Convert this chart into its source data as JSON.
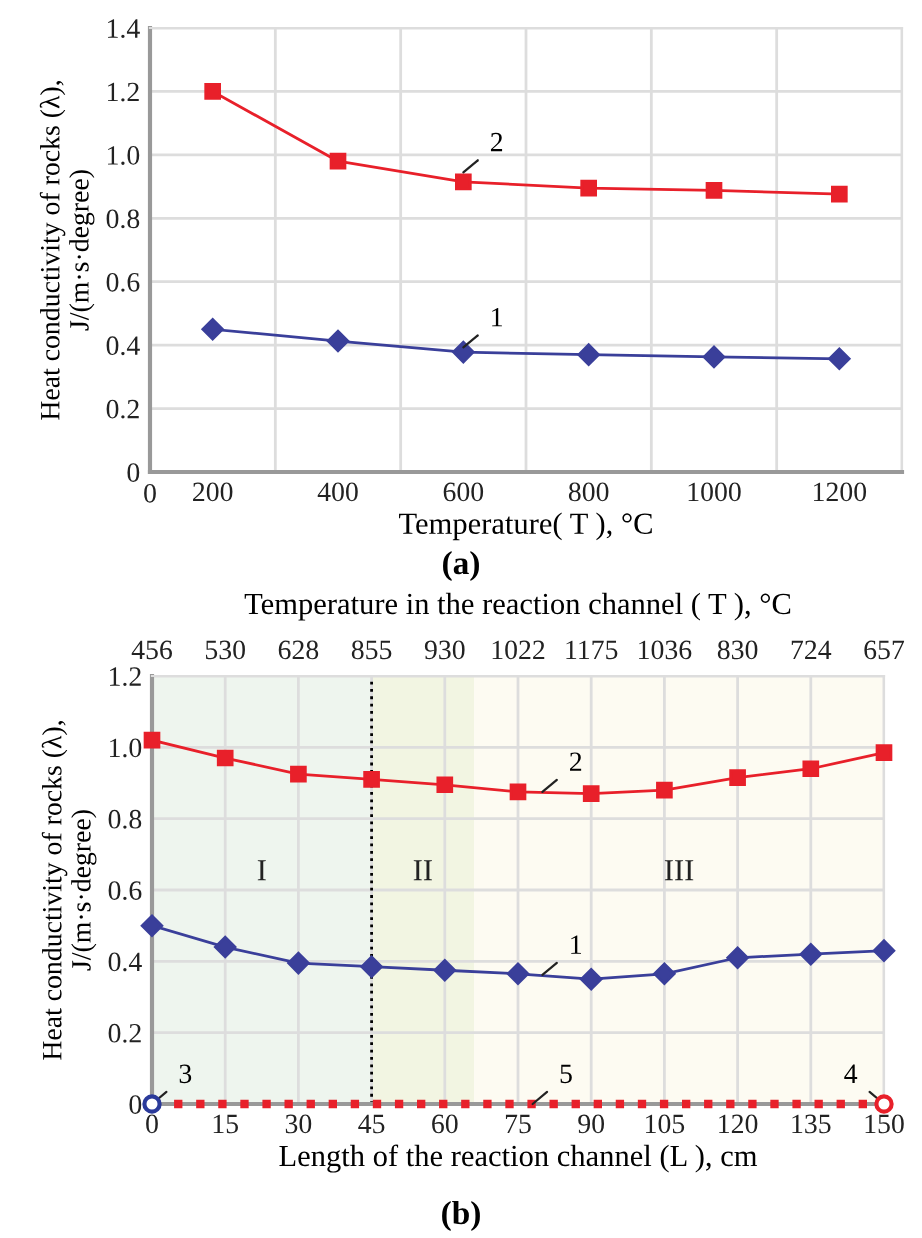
{
  "chart_data": [
    {
      "type": "line",
      "categories": [
        "200",
        "400",
        "600",
        "800",
        "1000",
        "1200"
      ],
      "series": [
        {
          "color": "#e8202a",
          "marker": "square",
          "values": [
            1.2,
            0.98,
            0.915,
            0.895,
            0.888,
            0.876
          ]
        },
        {
          "color": "#3a3f9a",
          "marker": "diamond",
          "values": [
            0.45,
            0.413,
            0.378,
            0.37,
            0.363,
            0.357
          ]
        }
      ],
      "ylim": [
        0,
        1.4
      ],
      "yticks": [
        0,
        0.2,
        0.4,
        0.6,
        0.8,
        {
          "value": 1.0,
          "label": "1.0"
        },
        1.2,
        1.4
      ],
      "xlabel": "Temperature( T ), °C",
      "ylabel": "Heat conductivity of rocks (λ),\nJ/(m·s·degree)",
      "grid": true,
      "line_style": "solid",
      "annotations": [
        {
          "text": "2",
          "x": "600",
          "y": 0.945
        },
        {
          "text": "1",
          "x": "600",
          "y": 0.393
        },
        "0",
        "(a)"
      ]
    },
    {
      "type": "line",
      "x": [
        0,
        15,
        30,
        45,
        60,
        75,
        90,
        105,
        120,
        135,
        150
      ],
      "series": [
        {
          "color": "#e8202a",
          "marker": "square",
          "values": [
            1.02,
            0.97,
            0.925,
            0.91,
            0.895,
            0.875,
            0.87,
            0.88,
            0.915,
            0.94,
            0.985
          ]
        },
        {
          "color": "#3a3f9a",
          "marker": "diamond",
          "values": [
            0.5,
            0.44,
            0.395,
            0.385,
            0.375,
            0.365,
            0.35,
            0.365,
            0.41,
            0.42,
            0.43
          ]
        },
        {
          "type": "line",
          "color": "#e8202a",
          "marker": "none",
          "line_style": "dotted",
          "values": [
            0,
            0,
            0,
            0,
            0,
            0,
            0,
            0,
            0,
            0,
            0
          ]
        },
        {
          "type": "scatter",
          "color": "#2a3a9a",
          "marker": "circle",
          "values": [
            0,
            null,
            null,
            null,
            null,
            null,
            null,
            null,
            null,
            null,
            null
          ]
        },
        {
          "type": "scatter",
          "color": "#e8202a",
          "marker": "circle",
          "values": [
            null,
            null,
            null,
            null,
            null,
            null,
            null,
            null,
            null,
            null,
            0
          ]
        }
      ],
      "xlim": [
        0,
        150
      ],
      "xticks": [
        0,
        15,
        30,
        45,
        60,
        75,
        90,
        105,
        120,
        135,
        150
      ],
      "ylim": [
        0,
        1.2
      ],
      "yticks": [
        0,
        0.2,
        0.4,
        0.6,
        0.8,
        {
          "value": 1.0,
          "label": "1.0"
        },
        1.2
      ],
      "x2label": "Temperature in the reaction channel ( T ), °C",
      "xlabel": "Length of the reaction channel (L ), cm",
      "ylabel": "Heat conductivity of rocks (λ),\nJ/(m·s·degree)",
      "grid": true,
      "line_style": "solid",
      "bands": [
        {
          "axis": "x",
          "from": 0,
          "to": 45,
          "label": "I",
          "color": "#eef5ee"
        },
        {
          "axis": "x",
          "from": 45,
          "to": 66,
          "label": "II",
          "color": "#f2f5e2"
        },
        {
          "axis": "x",
          "from": 66,
          "to": 150,
          "label": "III",
          "color": "#fdfbf2"
        }
      ],
      "ref_lines": [
        {
          "axis": "x",
          "value": 45,
          "line_style": "dotted",
          "color": "#000000"
        }
      ],
      "annotations": [
        {
          "text": "2",
          "x": 80,
          "y": 0.875
        },
        {
          "text": "1",
          "x": 80,
          "y": 0.362
        },
        {
          "text": "3",
          "x": 0,
          "y": 0
        },
        {
          "text": "4",
          "x": 150,
          "y": 0
        },
        {
          "text": "5",
          "x": 78,
          "y": 0
        },
        "456",
        "530",
        "628",
        "855",
        "930",
        "1022",
        "1175",
        "1036",
        "830",
        "724",
        "657",
        "(b)"
      ]
    }
  ]
}
